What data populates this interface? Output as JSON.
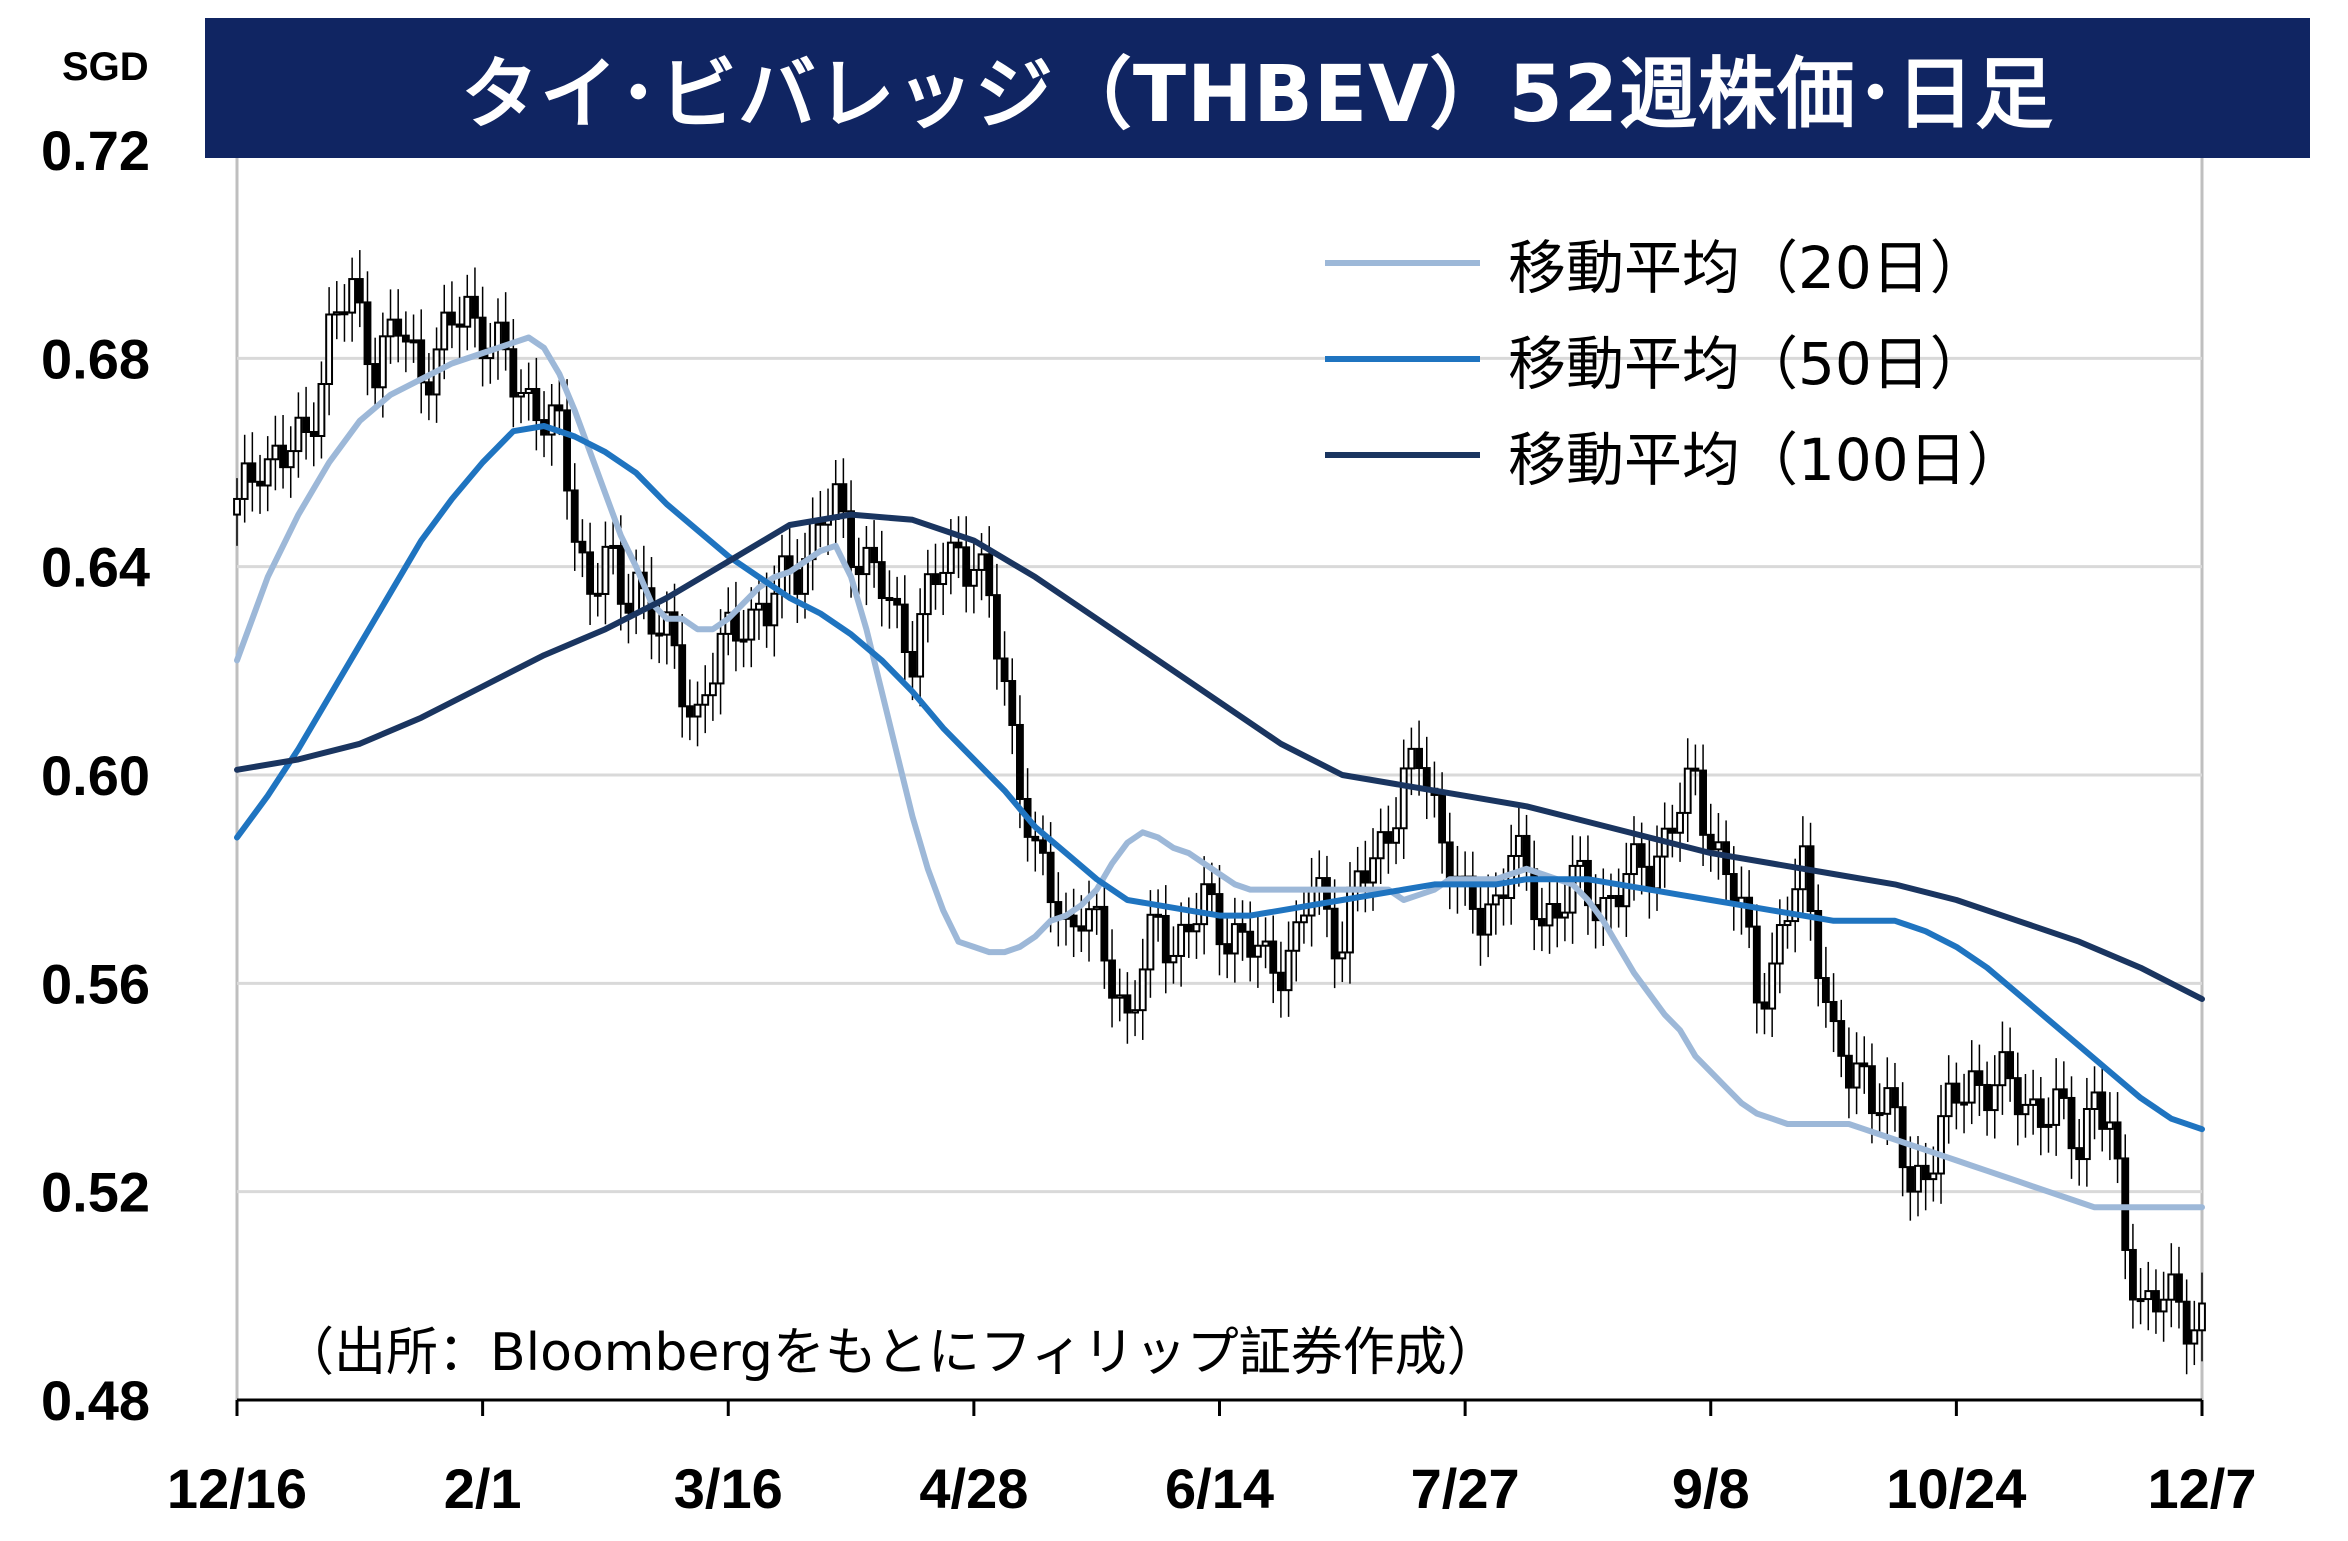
{
  "title": "タイ･ビバレッジ（THBEV）52週株価･日足",
  "unit": "SGD",
  "source": "（出所：Bloombergをもとにフィリップ証券作成）",
  "colors": {
    "title_bg": "#102562",
    "ma20": "#9db8d8",
    "ma50": "#1f74c0",
    "ma100": "#1a3560",
    "candle": "#000000",
    "grid": "#d9d9d9"
  },
  "legend": [
    {
      "key": "ma20",
      "label": "移動平均（20日）"
    },
    {
      "key": "ma50",
      "label": "移動平均（50日）"
    },
    {
      "key": "ma100",
      "label": "移動平均（100日）"
    }
  ],
  "chart_data": {
    "type": "line",
    "subtype": "candlestick-with-moving-averages",
    "xlabel": "",
    "ylabel": "",
    "ylim": [
      0.48,
      0.72
    ],
    "y_ticks": [
      "0.72",
      "0.68",
      "0.64",
      "0.60",
      "0.56",
      "0.52",
      "0.48"
    ],
    "x_tick_labels": [
      "12/16",
      "2/1",
      "3/16",
      "4/28",
      "6/14",
      "7/27",
      "9/8",
      "10/24",
      "12/7"
    ],
    "x_tick_index": [
      0,
      32,
      64,
      96,
      128,
      160,
      192,
      224,
      256
    ],
    "grid": "horizontal",
    "legend_position": "top-right",
    "candle_anchor_close": [
      0.65,
      0.662,
      0.66,
      0.665,
      0.685,
      0.692,
      0.68,
      0.685,
      0.678,
      0.683,
      0.69,
      0.684,
      0.675,
      0.672,
      0.664,
      0.648,
      0.636,
      0.642,
      0.632,
      0.64,
      0.63,
      0.625,
      0.618,
      0.612,
      0.623,
      0.632,
      0.63,
      0.64,
      0.645,
      0.652,
      0.64,
      0.63,
      0.625,
      0.633,
      0.64,
      0.645,
      0.64,
      0.632,
      0.618,
      0.6,
      0.582,
      0.578,
      0.572,
      0.574,
      0.568,
      0.562,
      0.554,
      0.562,
      0.571,
      0.568,
      0.574,
      0.57,
      0.563,
      0.568,
      0.578,
      0.574,
      0.569,
      0.579,
      0.582,
      0.592,
      0.598,
      0.602,
      0.594,
      0.585,
      0.574,
      0.572,
      0.577,
      0.586,
      0.578,
      0.573,
      0.578,
      0.576,
      0.58,
      0.588,
      0.598,
      0.59,
      0.58,
      0.573,
      0.56,
      0.563,
      0.582,
      0.568,
      0.548,
      0.541,
      0.543,
      0.539,
      0.532,
      0.52,
      0.532,
      0.542,
      0.54,
      0.537,
      0.533,
      0.53,
      0.54,
      0.53,
      0.51,
      0.5,
      0.498,
      0.496
    ],
    "candle_anchor_t": [
      0,
      3,
      6,
      9,
      12,
      15,
      18,
      21,
      24,
      27,
      30,
      33,
      36,
      39,
      42,
      44,
      46,
      48,
      50,
      52,
      54,
      56,
      58,
      60,
      63,
      66,
      69,
      72,
      75,
      78,
      82,
      86,
      88,
      90,
      92,
      94,
      96,
      98,
      100,
      102,
      104,
      106,
      108,
      110,
      112,
      114,
      116,
      118,
      120,
      122,
      126,
      130,
      134,
      138,
      140,
      142,
      144,
      146,
      148,
      150,
      152,
      154,
      156,
      158,
      160,
      162,
      164,
      166,
      168,
      170,
      174,
      178,
      182,
      186,
      190,
      192,
      194,
      196,
      198,
      200,
      204,
      206,
      208,
      210,
      212,
      214,
      216,
      218,
      222,
      226,
      230,
      234,
      238,
      240,
      242,
      244,
      246,
      248,
      252,
      256
    ],
    "series": [
      {
        "name": "移動平均（20日）",
        "x": [
          0,
          4,
          8,
          12,
          16,
          20,
          24,
          28,
          32,
          36,
          38,
          40,
          42,
          44,
          46,
          48,
          50,
          52,
          54,
          56,
          58,
          60,
          62,
          64,
          66,
          68,
          70,
          72,
          74,
          76,
          78,
          80,
          82,
          84,
          86,
          88,
          90,
          92,
          94,
          96,
          98,
          100,
          102,
          104,
          106,
          108,
          110,
          112,
          114,
          116,
          118,
          120,
          122,
          124,
          126,
          128,
          130,
          132,
          134,
          136,
          138,
          140,
          142,
          144,
          146,
          148,
          150,
          152,
          154,
          156,
          158,
          160,
          162,
          164,
          166,
          168,
          170,
          172,
          174,
          176,
          178,
          180,
          182,
          184,
          186,
          188,
          190,
          192,
          194,
          196,
          198,
          200,
          202,
          204,
          206,
          208,
          210,
          212,
          214,
          216,
          218,
          220,
          222,
          224,
          226,
          228,
          230,
          232,
          234,
          236,
          238,
          240,
          242,
          244,
          246,
          248,
          250,
          252,
          254,
          256
        ],
        "y": [
          0.622,
          0.638,
          0.65,
          0.66,
          0.668,
          0.673,
          0.676,
          0.679,
          0.681,
          0.683,
          0.684,
          0.682,
          0.677,
          0.67,
          0.662,
          0.654,
          0.646,
          0.64,
          0.633,
          0.63,
          0.63,
          0.628,
          0.628,
          0.63,
          0.633,
          0.636,
          0.638,
          0.639,
          0.641,
          0.643,
          0.644,
          0.638,
          0.628,
          0.616,
          0.604,
          0.592,
          0.582,
          0.574,
          0.568,
          0.567,
          0.566,
          0.566,
          0.567,
          0.569,
          0.572,
          0.573,
          0.575,
          0.578,
          0.583,
          0.587,
          0.589,
          0.588,
          0.586,
          0.585,
          0.583,
          0.581,
          0.579,
          0.578,
          0.578,
          0.578,
          0.578,
          0.578,
          0.578,
          0.578,
          0.578,
          0.578,
          0.578,
          0.576,
          0.577,
          0.578,
          0.58,
          0.58,
          0.58,
          0.58,
          0.581,
          0.582,
          0.581,
          0.58,
          0.579,
          0.576,
          0.572,
          0.567,
          0.562,
          0.558,
          0.554,
          0.551,
          0.546,
          0.543,
          0.54,
          0.537,
          0.535,
          0.534,
          0.533,
          0.533,
          0.533,
          0.533,
          0.533,
          0.532,
          0.531,
          0.53,
          0.529,
          0.528,
          0.527,
          0.526,
          0.525,
          0.524,
          0.523,
          0.522,
          0.521,
          0.52,
          0.519,
          0.518,
          0.517,
          0.517,
          0.517,
          0.517,
          0.517,
          0.517,
          0.517,
          0.517
        ]
      },
      {
        "name": "移動平均（50日）",
        "x": [
          0,
          4,
          8,
          12,
          16,
          20,
          24,
          28,
          32,
          36,
          40,
          44,
          48,
          52,
          56,
          60,
          64,
          68,
          72,
          76,
          80,
          84,
          88,
          92,
          96,
          100,
          104,
          108,
          112,
          116,
          120,
          124,
          128,
          132,
          136,
          140,
          144,
          148,
          152,
          156,
          160,
          164,
          168,
          172,
          176,
          180,
          184,
          188,
          192,
          196,
          200,
          204,
          208,
          212,
          216,
          220,
          224,
          228,
          232,
          236,
          240,
          244,
          248,
          252,
          256
        ],
        "y": [
          0.588,
          0.596,
          0.605,
          0.615,
          0.625,
          0.635,
          0.645,
          0.653,
          0.66,
          0.666,
          0.667,
          0.665,
          0.662,
          0.658,
          0.652,
          0.647,
          0.642,
          0.638,
          0.634,
          0.631,
          0.627,
          0.622,
          0.616,
          0.609,
          0.603,
          0.597,
          0.59,
          0.585,
          0.58,
          0.576,
          0.575,
          0.574,
          0.573,
          0.573,
          0.574,
          0.575,
          0.576,
          0.577,
          0.578,
          0.579,
          0.579,
          0.579,
          0.58,
          0.58,
          0.58,
          0.579,
          0.578,
          0.577,
          0.576,
          0.575,
          0.574,
          0.573,
          0.572,
          0.572,
          0.572,
          0.57,
          0.567,
          0.563,
          0.558,
          0.553,
          0.548,
          0.543,
          0.538,
          0.534,
          0.532
        ]
      },
      {
        "name": "移動平均（100日）",
        "x": [
          0,
          8,
          16,
          24,
          32,
          40,
          48,
          56,
          64,
          72,
          80,
          88,
          96,
          104,
          112,
          120,
          128,
          136,
          144,
          152,
          160,
          168,
          176,
          184,
          192,
          200,
          208,
          216,
          224,
          232,
          240,
          248,
          256
        ],
        "y": [
          0.601,
          0.603,
          0.606,
          0.611,
          0.617,
          0.623,
          0.628,
          0.634,
          0.641,
          0.648,
          0.65,
          0.649,
          0.645,
          0.638,
          0.63,
          0.622,
          0.614,
          0.606,
          0.6,
          0.598,
          0.596,
          0.594,
          0.591,
          0.588,
          0.585,
          0.583,
          0.581,
          0.579,
          0.576,
          0.572,
          0.568,
          0.563,
          0.557
        ]
      }
    ]
  }
}
